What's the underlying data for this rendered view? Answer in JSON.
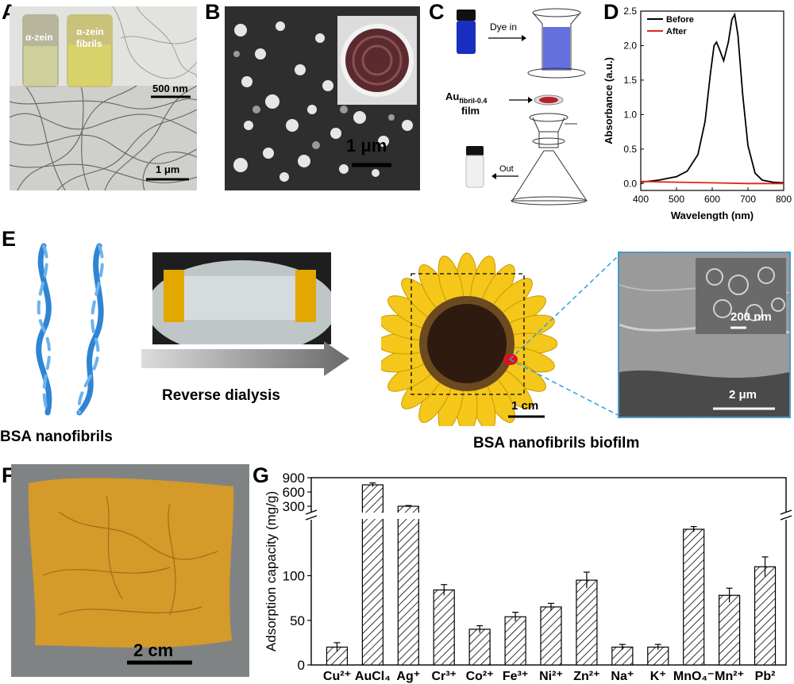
{
  "panels": {
    "A": {
      "label": "A",
      "vial1": "α-zein",
      "vial2a": "α-zein",
      "vial2b": "fibrils",
      "scale_inset": "500 nm",
      "scale_main": "1 μm"
    },
    "B": {
      "label": "B",
      "scale": "1 μm"
    },
    "C": {
      "label": "C",
      "dye_in": "Dye in",
      "au_main": "Au",
      "au_sub": "fibril-0.4",
      "au_film": "film",
      "out": "Out"
    },
    "D": {
      "label": "D"
    },
    "E": {
      "label": "E",
      "fibrils_caption": "BSA nanofibrils",
      "arrow_caption": "Reverse dialysis",
      "biofilm_caption": "BSA nanofibrils biofilm",
      "scale_flower": "1 cm",
      "scale_sem_inset": "200 nm",
      "scale_sem": "2 μm"
    },
    "F": {
      "label": "F",
      "scale": "2 cm"
    },
    "G": {
      "label": "G"
    }
  },
  "chart_data": [
    {
      "type": "line",
      "panel": "D",
      "xlabel": "Wavelength (nm)",
      "ylabel": "Absorbance (a.u.)",
      "xlim": [
        400,
        800
      ],
      "ylim": [
        -0.1,
        2.5
      ],
      "xticks": [
        400,
        500,
        600,
        700,
        800
      ],
      "yticks": [
        0.0,
        0.5,
        1.0,
        1.5,
        2.0,
        2.5
      ],
      "legend_position": "top-left",
      "series": [
        {
          "name": "Before",
          "color": "#000000",
          "x": [
            400,
            450,
            500,
            530,
            560,
            580,
            595,
            605,
            612,
            620,
            632,
            645,
            655,
            663,
            672,
            685,
            700,
            720,
            740,
            770,
            800
          ],
          "y": [
            0.02,
            0.05,
            0.1,
            0.18,
            0.42,
            0.9,
            1.6,
            2.0,
            2.05,
            1.95,
            1.78,
            2.05,
            2.38,
            2.45,
            2.15,
            1.3,
            0.55,
            0.15,
            0.05,
            0.02,
            0.01
          ]
        },
        {
          "name": "After",
          "color": "#e0241b",
          "x": [
            400,
            500,
            600,
            700,
            800
          ],
          "y": [
            0.03,
            0.02,
            0.01,
            0.0,
            0.0
          ]
        }
      ]
    },
    {
      "type": "bar",
      "panel": "G",
      "ylabel": "Adsorption capacity (mg/g)",
      "categories": [
        "Cu²⁺",
        "AuCl₄⁻",
        "Ag⁺",
        "Cr³⁺",
        "Co²⁺",
        "Fe³⁺",
        "Ni²⁺",
        "Zn²⁺",
        "Na⁺",
        "K⁺",
        "MnO₄⁻",
        "Mn²⁺",
        "Pb²⁺"
      ],
      "category_labels": [
        "Cu²⁺",
        "AuCl₄",
        "Ag⁺",
        "Cr³⁺",
        "Co²⁺",
        "Fe³⁺",
        "Ni²⁺",
        "Zn²⁺",
        "Na⁺",
        "K⁺",
        "MnO₄⁻",
        "Mn²⁺",
        "Pb²"
      ],
      "values": [
        20,
        750,
        300,
        84,
        40,
        54,
        65,
        95,
        20,
        20,
        152,
        78,
        110
      ],
      "errors": [
        5,
        40,
        15,
        6,
        4,
        5,
        4,
        9,
        3,
        3,
        3,
        8,
        11
      ],
      "broken_axis": true,
      "lower_ylim": [
        0,
        160
      ],
      "lower_yticks": [
        0,
        50,
        100
      ],
      "upper_ylim": [
        200,
        900
      ],
      "upper_yticks": [
        300,
        600,
        900
      ],
      "bar_pattern": "diagonal-hatch"
    }
  ]
}
